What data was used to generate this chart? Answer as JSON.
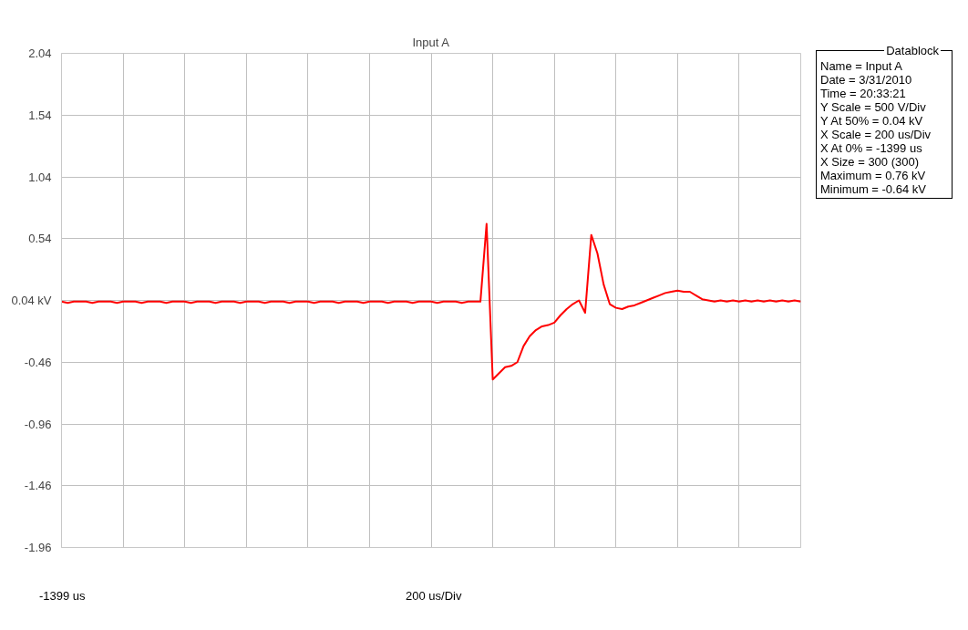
{
  "chart_data": {
    "type": "line",
    "title": "Input A",
    "categories": [
      null,
      null,
      null,
      null,
      null,
      null,
      null,
      null,
      null,
      null,
      null,
      null,
      null,
      null,
      null,
      null,
      null,
      null,
      null,
      null,
      null,
      null,
      null,
      null,
      null,
      null,
      null,
      null,
      null,
      null,
      null,
      null,
      null,
      null,
      null,
      null,
      null,
      null,
      null,
      null,
      null,
      null,
      null,
      null,
      null,
      null,
      null,
      null,
      null,
      null,
      null,
      null,
      null,
      null,
      null,
      null,
      null,
      null,
      null,
      null,
      null,
      null,
      null,
      null,
      null,
      null,
      null,
      null,
      null,
      null,
      null,
      null,
      null,
      null,
      null,
      null,
      null,
      null,
      null,
      null,
      null,
      null,
      null,
      null,
      null,
      null,
      null,
      null,
      null,
      null,
      null,
      null,
      null,
      null,
      null,
      null,
      null,
      null,
      null,
      null,
      null,
      null,
      null,
      null,
      null,
      null,
      null,
      null,
      null,
      null,
      null,
      null,
      null,
      null,
      null,
      null,
      null,
      null,
      null,
      null,
      null
    ],
    "series": [
      {
        "color": "#ff0000",
        "values": [
          0.03,
          0.02,
          0.03,
          0.03,
          0.03,
          0.02,
          0.03,
          0.03,
          0.03,
          0.02,
          0.03,
          0.03,
          0.03,
          0.02,
          0.03,
          0.03,
          0.03,
          0.02,
          0.03,
          0.03,
          0.03,
          0.02,
          0.03,
          0.03,
          0.03,
          0.02,
          0.03,
          0.03,
          0.03,
          0.02,
          0.03,
          0.03,
          0.03,
          0.02,
          0.03,
          0.03,
          0.03,
          0.02,
          0.03,
          0.03,
          0.03,
          0.02,
          0.03,
          0.03,
          0.03,
          0.02,
          0.03,
          0.03,
          0.03,
          0.02,
          0.03,
          0.03,
          0.03,
          0.02,
          0.03,
          0.03,
          0.03,
          0.02,
          0.03,
          0.03,
          0.03,
          0.02,
          0.03,
          0.03,
          0.03,
          0.02,
          0.03,
          0.03,
          0.03,
          0.66,
          -0.6,
          -0.55,
          -0.5,
          -0.49,
          -0.46,
          -0.33,
          -0.25,
          -0.2,
          -0.17,
          -0.16,
          -0.14,
          -0.08,
          -0.03,
          0.01,
          0.04,
          -0.06,
          0.57,
          0.42,
          0.17,
          0.01,
          -0.02,
          -0.03,
          -0.01,
          0.0,
          0.02,
          0.04,
          0.06,
          0.08,
          0.1,
          0.11,
          0.12,
          0.11,
          0.11,
          0.08,
          0.05,
          0.04,
          0.03,
          0.04,
          0.03,
          0.04,
          0.03,
          0.04,
          0.03,
          0.04,
          0.03,
          0.04,
          0.03,
          0.04,
          0.03,
          0.04,
          0.03
        ]
      }
    ],
    "ylim": [
      -1.96,
      2.04
    ],
    "yticks": [
      2.04,
      1.54,
      1.04,
      0.54,
      {
        "value": 0.04,
        "label": "0.04 kV"
      },
      -0.46,
      -0.96,
      -1.46,
      -1.96
    ],
    "grid": true,
    "tick_labels": "y",
    "marker": "none",
    "line_style": "solid",
    "annotations": [
      "-1399 us",
      "200 us/Div",
      "Datablock",
      "Name = Input A",
      "Date = 3/31/2010",
      "Time = 20:33:21",
      "Y Scale = 500 V/Div",
      "Y At 50% = 0.04 kV",
      "X Scale = 200 us/Div",
      "X At 0% = -1399 us",
      "X Size = 300 (300)",
      "Maximum = 0.76 kV",
      "Minimum = -0.64 kV"
    ]
  }
}
